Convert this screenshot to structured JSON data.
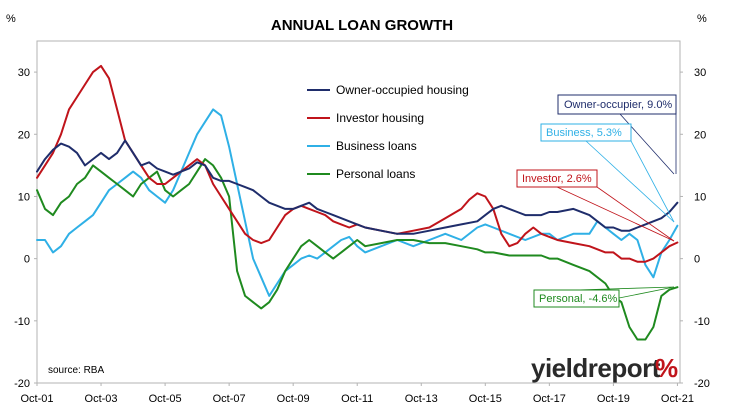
{
  "chart_data": {
    "type": "line",
    "title": "ANNUAL LOAN GROWTH",
    "ylabel_left": "%",
    "ylabel_right": "%",
    "source": "source: RBA",
    "brand": {
      "part1": "yield",
      "part2": "report",
      "symbol": "%"
    },
    "ylim": [
      -20,
      35
    ],
    "yticks": [
      -20,
      -10,
      0,
      10,
      20,
      30
    ],
    "xlim": [
      2001.75,
      2021.83
    ],
    "xticks": [
      {
        "x": 2001.75,
        "label": "Oct-01"
      },
      {
        "x": 2003.75,
        "label": "Oct-03"
      },
      {
        "x": 2005.75,
        "label": "Oct-05"
      },
      {
        "x": 2007.75,
        "label": "Oct-07"
      },
      {
        "x": 2009.75,
        "label": "Oct-09"
      },
      {
        "x": 2011.75,
        "label": "Oct-11"
      },
      {
        "x": 2013.75,
        "label": "Oct-13"
      },
      {
        "x": 2015.75,
        "label": "Oct-15"
      },
      {
        "x": 2017.75,
        "label": "Oct-17"
      },
      {
        "x": 2019.75,
        "label": "Oct-19"
      },
      {
        "x": 2021.75,
        "label": "Oct-21"
      }
    ],
    "grid": false,
    "legend_position": "top-center",
    "series": [
      {
        "name": "Owner-occupied housing",
        "color": "#1f2d6b",
        "x": [
          2001.75,
          2002.0,
          2002.25,
          2002.5,
          2002.75,
          2003.0,
          2003.25,
          2003.5,
          2003.75,
          2004.0,
          2004.25,
          2004.5,
          2004.75,
          2005.0,
          2005.25,
          2005.5,
          2005.75,
          2006.0,
          2006.25,
          2006.5,
          2006.75,
          2007.0,
          2007.25,
          2007.5,
          2007.75,
          2008.0,
          2008.25,
          2008.5,
          2008.75,
          2009.0,
          2009.25,
          2009.5,
          2009.75,
          2010.0,
          2010.25,
          2010.5,
          2010.75,
          2011.0,
          2011.25,
          2011.5,
          2011.75,
          2012.0,
          2012.5,
          2013.0,
          2013.5,
          2014.0,
          2014.5,
          2015.0,
          2015.5,
          2015.75,
          2016.0,
          2016.25,
          2016.5,
          2016.75,
          2017.0,
          2017.5,
          2017.75,
          2018.0,
          2018.5,
          2019.0,
          2019.5,
          2019.75,
          2020.0,
          2020.25,
          2020.5,
          2020.75,
          2021.0,
          2021.25,
          2021.5,
          2021.75
        ],
        "y": [
          14,
          16,
          17.5,
          18.5,
          18,
          17,
          15,
          16,
          17,
          16,
          17,
          19,
          17,
          15,
          15.5,
          14.5,
          14,
          13.5,
          14,
          14.5,
          15.5,
          15,
          13,
          12.5,
          12.5,
          12,
          11.5,
          11,
          10,
          9,
          8.5,
          8,
          8,
          8.5,
          9,
          8,
          7.5,
          7,
          6.5,
          6,
          5.5,
          5,
          4.5,
          4,
          4,
          4.5,
          5,
          5.5,
          6,
          7,
          8,
          8.5,
          8,
          7.5,
          7,
          7,
          7.5,
          7.5,
          8,
          7,
          5,
          5,
          4.5,
          4.5,
          5,
          5.5,
          6,
          6.5,
          7.5,
          9
        ]
      },
      {
        "name": "Investor housing",
        "color": "#c0141b",
        "x": [
          2001.75,
          2002.0,
          2002.25,
          2002.5,
          2002.75,
          2003.0,
          2003.25,
          2003.5,
          2003.75,
          2004.0,
          2004.25,
          2004.5,
          2004.75,
          2005.0,
          2005.25,
          2005.5,
          2005.75,
          2006.0,
          2006.25,
          2006.5,
          2006.75,
          2007.0,
          2007.25,
          2007.5,
          2007.75,
          2008.0,
          2008.25,
          2008.5,
          2008.75,
          2009.0,
          2009.25,
          2009.5,
          2009.75,
          2010.0,
          2010.25,
          2010.5,
          2010.75,
          2011.0,
          2011.25,
          2011.5,
          2011.75,
          2012.0,
          2012.5,
          2013.0,
          2013.5,
          2014.0,
          2014.5,
          2015.0,
          2015.25,
          2015.5,
          2015.75,
          2016.0,
          2016.25,
          2016.5,
          2016.75,
          2017.0,
          2017.25,
          2017.5,
          2017.75,
          2018.0,
          2018.5,
          2019.0,
          2019.5,
          2019.75,
          2020.0,
          2020.25,
          2020.5,
          2020.75,
          2021.0,
          2021.25,
          2021.5,
          2021.75
        ],
        "y": [
          13,
          15,
          17,
          20,
          24,
          26,
          28,
          30,
          31,
          29,
          24,
          19,
          17,
          15,
          13,
          12,
          12,
          13,
          14,
          15,
          16,
          15,
          12,
          10,
          8,
          6,
          4,
          3,
          2.5,
          3,
          5,
          7,
          8,
          8.5,
          8,
          7.5,
          7,
          6,
          5.5,
          5,
          5.5,
          5,
          4.5,
          4,
          4.5,
          5,
          6.5,
          8,
          9.5,
          10.5,
          10,
          8,
          4,
          2,
          2.5,
          4,
          5,
          4,
          3.5,
          3,
          2.5,
          2,
          1,
          1,
          0,
          0,
          -0.5,
          -0.5,
          0,
          1,
          2,
          2.6
        ]
      },
      {
        "name": "Business loans",
        "color": "#2fb0e6",
        "x": [
          2001.75,
          2002.0,
          2002.25,
          2002.5,
          2002.75,
          2003.0,
          2003.25,
          2003.5,
          2003.75,
          2004.0,
          2004.25,
          2004.5,
          2004.75,
          2005.0,
          2005.25,
          2005.5,
          2005.75,
          2006.0,
          2006.25,
          2006.5,
          2006.75,
          2007.0,
          2007.25,
          2007.5,
          2007.75,
          2008.0,
          2008.25,
          2008.5,
          2008.75,
          2009.0,
          2009.25,
          2009.5,
          2009.75,
          2010.0,
          2010.25,
          2010.5,
          2010.75,
          2011.0,
          2011.25,
          2011.5,
          2011.75,
          2012.0,
          2012.5,
          2013.0,
          2013.5,
          2014.0,
          2014.5,
          2015.0,
          2015.5,
          2015.75,
          2016.0,
          2016.5,
          2017.0,
          2017.5,
          2017.75,
          2018.0,
          2018.5,
          2019.0,
          2019.25,
          2019.5,
          2019.75,
          2020.0,
          2020.25,
          2020.5,
          2020.75,
          2021.0,
          2021.25,
          2021.5,
          2021.75
        ],
        "y": [
          3,
          3,
          1,
          2,
          4,
          5,
          6,
          7,
          9,
          11,
          12,
          13,
          14,
          13,
          11,
          10,
          9,
          11,
          14,
          17,
          20,
          22,
          24,
          23,
          18,
          12,
          6,
          0,
          -3,
          -6,
          -4,
          -2,
          -1,
          0,
          0.5,
          0,
          1,
          2,
          3,
          3.5,
          2,
          1,
          2,
          3,
          2,
          3,
          4,
          3,
          5,
          5.5,
          5,
          4,
          3,
          4,
          4,
          3,
          4,
          4,
          6,
          5,
          4,
          3,
          4,
          3,
          -1,
          -3,
          1,
          3,
          5.3
        ]
      },
      {
        "name": "Personal loans",
        "color": "#1f8a1f",
        "x": [
          2001.75,
          2002.0,
          2002.25,
          2002.5,
          2002.75,
          2003.0,
          2003.25,
          2003.5,
          2003.75,
          2004.0,
          2004.25,
          2004.5,
          2004.75,
          2005.0,
          2005.25,
          2005.5,
          2005.75,
          2006.0,
          2006.25,
          2006.5,
          2006.75,
          2007.0,
          2007.25,
          2007.5,
          2007.75,
          2008.0,
          2008.25,
          2008.5,
          2008.75,
          2009.0,
          2009.25,
          2009.5,
          2009.75,
          2010.0,
          2010.25,
          2010.5,
          2010.75,
          2011.0,
          2011.25,
          2011.5,
          2011.75,
          2012.0,
          2012.5,
          2013.0,
          2013.5,
          2014.0,
          2014.5,
          2015.0,
          2015.5,
          2015.75,
          2016.0,
          2016.5,
          2017.0,
          2017.5,
          2017.75,
          2018.0,
          2018.5,
          2019.0,
          2019.5,
          2019.75,
          2020.0,
          2020.25,
          2020.5,
          2020.75,
          2021.0,
          2021.25,
          2021.5,
          2021.75
        ],
        "y": [
          11,
          8,
          7,
          9,
          10,
          12,
          13,
          15,
          14,
          13,
          12,
          11,
          10,
          12,
          13,
          14,
          11,
          10,
          11,
          12,
          14,
          16,
          15,
          13,
          10,
          -2,
          -6,
          -7,
          -8,
          -7,
          -5,
          -2,
          0,
          2,
          3,
          2,
          1,
          0,
          1,
          2,
          3,
          2,
          2.5,
          3,
          3,
          2.5,
          2.5,
          2,
          1.5,
          1,
          1,
          0.5,
          0.5,
          0.5,
          0,
          0,
          -1,
          -2,
          -4,
          -6,
          -7,
          -11,
          -13,
          -13,
          -11,
          -6,
          -5,
          -4.6
        ]
      }
    ],
    "callouts": [
      {
        "series": "Owner-occupied housing",
        "text": "Owner-occupier, 9.0%",
        "value": 9.0
      },
      {
        "series": "Business loans",
        "text": "Business, 5.3%",
        "value": 5.3
      },
      {
        "series": "Investor housing",
        "text": "Investor, 2.6%",
        "value": 2.6
      },
      {
        "series": "Personal loans",
        "text": "Personal, -4.6%",
        "value": -4.6
      }
    ]
  }
}
